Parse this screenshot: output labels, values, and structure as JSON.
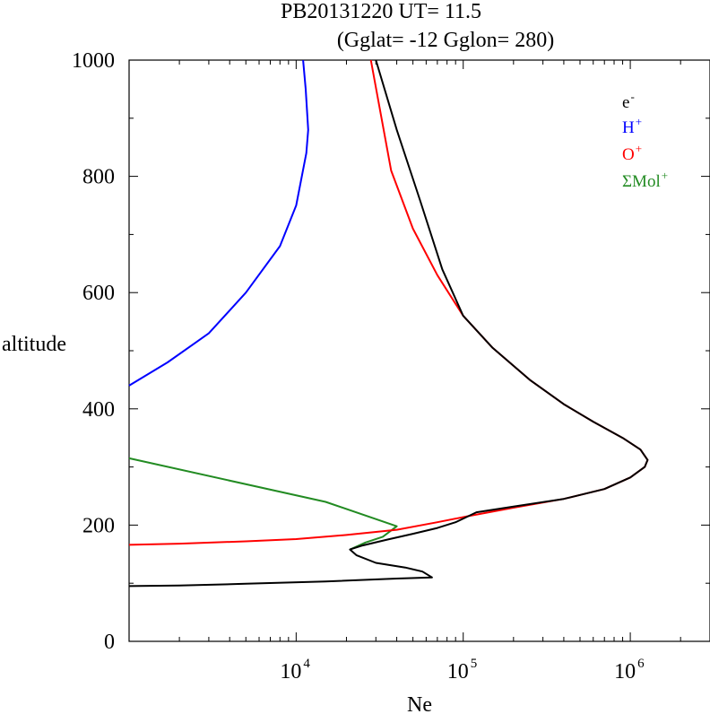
{
  "chart_data": {
    "type": "line",
    "title": "PB20131220   UT=  11.5",
    "subtitle": "(Gglat= -12   Gglon=  280)",
    "xlabel": "Ne",
    "ylabel": "altitude",
    "xscale": "log",
    "xlim": [
      1000,
      3000000
    ],
    "ylim": [
      0,
      1000
    ],
    "yticks": [
      0,
      200,
      400,
      600,
      800,
      1000
    ],
    "ytick_labels": [
      "0",
      "200",
      "400",
      "600",
      "800",
      "1000"
    ],
    "xticks": [
      {
        "value": 10000,
        "base": "10",
        "exp": "4"
      },
      {
        "value": 100000,
        "base": "10",
        "exp": "5"
      },
      {
        "value": 1000000,
        "base": "10",
        "exp": "6"
      }
    ],
    "legend_position": "top-right",
    "series": [
      {
        "name": "e-",
        "label_base": "e",
        "label_sup": "-",
        "color": "#000000",
        "points": [
          [
            1000,
            95
          ],
          [
            2000,
            96
          ],
          [
            5000,
            99
          ],
          [
            15000,
            103
          ],
          [
            40000,
            108
          ],
          [
            65000,
            110
          ],
          [
            57000,
            120
          ],
          [
            45000,
            127
          ],
          [
            30000,
            135
          ],
          [
            23000,
            148
          ],
          [
            21000,
            158
          ],
          [
            25000,
            165
          ],
          [
            35000,
            175
          ],
          [
            50000,
            185
          ],
          [
            70000,
            195
          ],
          [
            90000,
            205
          ],
          [
            120000,
            222
          ],
          [
            200000,
            232
          ],
          [
            400000,
            245
          ],
          [
            700000,
            262
          ],
          [
            1000000,
            282
          ],
          [
            1220000,
            300
          ],
          [
            1270000,
            312
          ],
          [
            1150000,
            330
          ],
          [
            900000,
            350
          ],
          [
            600000,
            378
          ],
          [
            400000,
            408
          ],
          [
            250000,
            450
          ],
          [
            150000,
            505
          ],
          [
            100000,
            560
          ],
          [
            75000,
            640
          ],
          [
            55000,
            760
          ],
          [
            40000,
            880
          ],
          [
            30000,
            1000
          ]
        ]
      },
      {
        "name": "H+",
        "label_base": "H",
        "label_sup": "+",
        "color": "#0000ff",
        "points": [
          [
            1000,
            440
          ],
          [
            1700,
            480
          ],
          [
            3000,
            530
          ],
          [
            5000,
            600
          ],
          [
            8000,
            680
          ],
          [
            10000,
            750
          ],
          [
            11500,
            840
          ],
          [
            11800,
            880
          ],
          [
            11400,
            950
          ],
          [
            11000,
            1000
          ]
        ]
      },
      {
        "name": "O+",
        "label_base": "O",
        "label_sup": "+",
        "color": "#ff0000",
        "points": [
          [
            1000,
            166
          ],
          [
            2000,
            168
          ],
          [
            5000,
            172
          ],
          [
            10000,
            176
          ],
          [
            20000,
            183
          ],
          [
            40000,
            192
          ],
          [
            70000,
            205
          ],
          [
            110000,
            216
          ],
          [
            200000,
            230
          ],
          [
            400000,
            245
          ],
          [
            700000,
            262
          ],
          [
            1000000,
            282
          ],
          [
            1220000,
            300
          ],
          [
            1270000,
            312
          ],
          [
            1150000,
            330
          ],
          [
            900000,
            350
          ],
          [
            600000,
            378
          ],
          [
            400000,
            408
          ],
          [
            250000,
            450
          ],
          [
            150000,
            505
          ],
          [
            100000,
            560
          ],
          [
            70000,
            630
          ],
          [
            50000,
            710
          ],
          [
            37000,
            810
          ],
          [
            28000,
            1000
          ]
        ]
      },
      {
        "name": "ΣMol+",
        "label_base": "ΣMol",
        "label_sup": "+",
        "color": "#228b22",
        "points": [
          [
            1000,
            315
          ],
          [
            15000,
            240
          ],
          [
            40000,
            198
          ],
          [
            33000,
            180
          ],
          [
            26000,
            170
          ],
          [
            21000,
            158
          ]
        ]
      }
    ]
  }
}
